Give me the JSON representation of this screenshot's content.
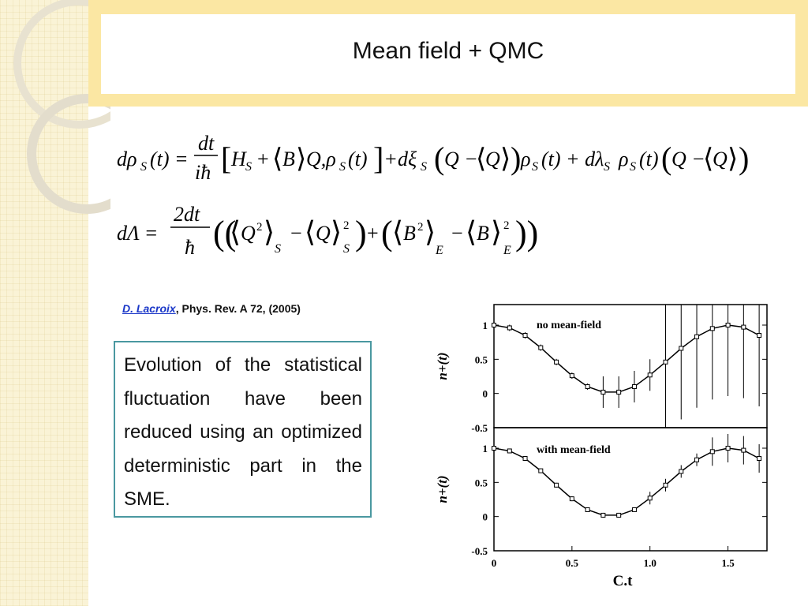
{
  "slide": {
    "title": "Mean field + QMC",
    "citation_author": "D. Lacroix",
    "citation_ref": ", Phys. Rev. A 72, (2005)",
    "body_text": "Evolution of the statistical fluctuation have been reduced using an optimized deterministic part in the SME."
  },
  "equations": {
    "eq1": "dρS(t) = dt/(iħ) [HS + ⟨B⟩Q, ρS(t)] + dξS (Q − ⟨Q⟩)ρS(t) + dλS ρS(t)(Q − ⟨Q⟩)",
    "eq2": "dΛ = 2dt/ħ ((⟨Q²⟩S − ⟨Q⟩S²) + (⟨B²⟩E − ⟨B⟩E²))"
  },
  "chart_data": [
    {
      "type": "scatter",
      "title": "no mean-field",
      "ylabel": "n+(t)",
      "xlim": [
        0,
        1.75
      ],
      "ylim": [
        -0.5,
        1.3
      ],
      "yticks": [
        "1",
        "0.5",
        "0",
        "-0.5"
      ],
      "series": [
        {
          "x": [
            0,
            0.1,
            0.2,
            0.3,
            0.4,
            0.5,
            0.6,
            0.7,
            0.8,
            0.9,
            1.0,
            1.1,
            1.2,
            1.3,
            1.4,
            1.5,
            1.6,
            1.7
          ],
          "y": [
            1.0,
            0.96,
            0.85,
            0.67,
            0.46,
            0.26,
            0.1,
            0.02,
            0.02,
            0.1,
            0.27,
            0.46,
            0.66,
            0.83,
            0.95,
            1.0,
            0.97,
            0.85
          ]
        }
      ]
    },
    {
      "type": "scatter",
      "title": "with mean-field",
      "ylabel": "n+(t)",
      "xlabel": "C.t",
      "xlim": [
        0,
        1.75
      ],
      "ylim": [
        -0.5,
        1.3
      ],
      "xticks": [
        "0",
        "0.5",
        "1.0",
        "1.5"
      ],
      "yticks": [
        "1",
        "0.5",
        "0",
        "-0.5"
      ],
      "series": [
        {
          "x": [
            0,
            0.1,
            0.2,
            0.3,
            0.4,
            0.5,
            0.6,
            0.7,
            0.8,
            0.9,
            1.0,
            1.1,
            1.2,
            1.3,
            1.4,
            1.5,
            1.6,
            1.7
          ],
          "y": [
            1.0,
            0.96,
            0.85,
            0.67,
            0.46,
            0.26,
            0.1,
            0.02,
            0.02,
            0.1,
            0.27,
            0.46,
            0.66,
            0.83,
            0.95,
            1.0,
            0.97,
            0.85
          ]
        }
      ]
    }
  ]
}
